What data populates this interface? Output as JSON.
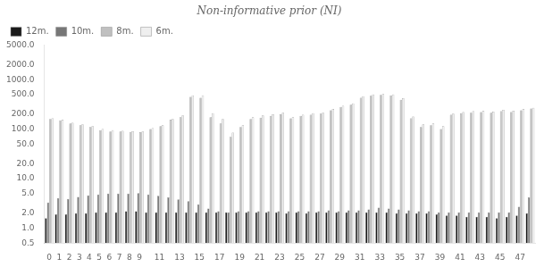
{
  "chart_data": {
    "type": "bar",
    "title": "Non-informative prior (NI)",
    "categories": [
      "0",
      "1",
      "2",
      "3",
      "4",
      "5",
      "6",
      "7",
      "8",
      "9",
      null,
      "11",
      null,
      "13",
      null,
      "15",
      null,
      "17",
      null,
      "19",
      null,
      "21",
      null,
      "23",
      null,
      "25",
      null,
      "27",
      null,
      "29",
      null,
      "31",
      null,
      "33",
      null,
      "35",
      null,
      "37",
      null,
      "39",
      null,
      "41",
      null,
      "43",
      null,
      "45",
      null,
      "47",
      null
    ],
    "series": [
      {
        "name": "12m.",
        "color": "#1a1a1a",
        "values": [
          1.6,
          1.9,
          1.9,
          2.0,
          2.0,
          2.1,
          2.1,
          2.1,
          2.2,
          2.2,
          2.1,
          2.1,
          2.1,
          2.1,
          2.1,
          2.1,
          2.1,
          2.1,
          2.1,
          2.1,
          2.1,
          2.1,
          2.1,
          2.1,
          2.0,
          2.1,
          2.0,
          2.1,
          2.1,
          2.1,
          2.1,
          2.1,
          2.1,
          2.1,
          2.1,
          2.0,
          2.0,
          2.0,
          2.0,
          1.9,
          1.8,
          1.8,
          1.7,
          1.7,
          1.7,
          1.6,
          1.7,
          1.8,
          2.0
        ]
      },
      {
        "name": "10m.",
        "color": "#777777",
        "values": [
          3.3,
          4.0,
          3.9,
          4.3,
          4.6,
          4.8,
          5.0,
          5.0,
          5.0,
          5.1,
          4.8,
          4.5,
          4.2,
          3.8,
          3.5,
          3.0,
          2.5,
          2.2,
          2.1,
          2.2,
          2.2,
          2.2,
          2.2,
          2.2,
          2.2,
          2.2,
          2.2,
          2.2,
          2.3,
          2.2,
          2.3,
          2.3,
          2.4,
          2.6,
          2.5,
          2.4,
          2.3,
          2.2,
          2.2,
          2.1,
          2.1,
          2.1,
          2.1,
          2.1,
          2.1,
          2.1,
          2.1,
          2.7,
          4.2
        ]
      },
      {
        "name": "8m.",
        "color": "#c0c0c0",
        "values": [
          160,
          150,
          130,
          120,
          110,
          95,
          90,
          90,
          88,
          87,
          100,
          115,
          155,
          175,
          450,
          430,
          175,
          130,
          70,
          110,
          160,
          170,
          185,
          200,
          165,
          185,
          195,
          205,
          240,
          280,
          310,
          430,
          470,
          490,
          480,
          390,
          165,
          110,
          120,
          100,
          195,
          210,
          215,
          220,
          215,
          230,
          220,
          240,
          260
        ]
      },
      {
        "name": "6m.",
        "color": "#efefef",
        "values": [
          165,
          155,
          135,
          125,
          115,
          100,
          95,
          92,
          91,
          90,
          105,
          120,
          160,
          190,
          480,
          480,
          210,
          160,
          85,
          120,
          175,
          190,
          200,
          215,
          175,
          195,
          210,
          215,
          255,
          295,
          330,
          460,
          500,
          510,
          500,
          420,
          180,
          125,
          130,
          115,
          205,
          220,
          230,
          235,
          225,
          245,
          235,
          255,
          270
        ]
      }
    ],
    "log": "y",
    "ylim": [
      0.5,
      5000
    ],
    "yticks": [
      0.5,
      {
        "value": 1,
        "label": "1.0"
      },
      {
        "value": 2,
        "label": "2.0"
      },
      {
        "value": 5,
        "label": "5.0"
      },
      {
        "value": 10,
        "label": "10.0"
      },
      {
        "value": 20,
        "label": "20.0"
      },
      {
        "value": 50,
        "label": "50.0"
      },
      {
        "value": 100,
        "label": "100.0"
      },
      {
        "value": 200,
        "label": "200.0"
      },
      {
        "value": 500,
        "label": "500.0"
      },
      {
        "value": 1000,
        "label": "1000.0"
      },
      {
        "value": 2000,
        "label": "2000.0"
      },
      {
        "value": 5000,
        "label": "5000.0"
      }
    ],
    "grid": false,
    "legend": "upper left"
  }
}
